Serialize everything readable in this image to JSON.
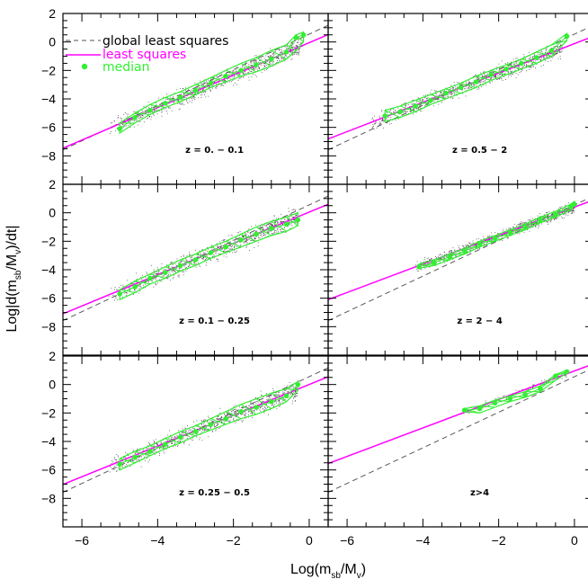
{
  "figure": {
    "xlabel": {
      "main": "Log(m",
      "sub1": "sb",
      "mid": "/M",
      "sub2": "v",
      "end": ")"
    },
    "ylabel": {
      "main": "Log|d(m",
      "sub1": "sb",
      "mid": "/M",
      "sub2": "v",
      "end": ")/dt|"
    }
  },
  "legend": {
    "global": "global least squares",
    "least": "least squares",
    "median": "median"
  },
  "colors": {
    "global_line": "#555555",
    "least_line": "#ff00ff",
    "median": "#33ee33",
    "scatter": "#222222"
  },
  "chart_data": {
    "type": "scatter",
    "layout": "3x2 panel grid",
    "xlim": [
      -6.5,
      0.5
    ],
    "ylim": [
      -10,
      2
    ],
    "xticks": [
      "−6",
      "−4",
      "−2",
      "0"
    ],
    "yticks": [
      "−8",
      "−6",
      "−4",
      "−2",
      "0",
      "2"
    ],
    "global_fit": {
      "slope": 1.25,
      "intercept": 0.55
    },
    "panels": [
      {
        "label": "z = 0. − 0.1",
        "fit": {
          "slope": 1.14,
          "intercept": -0.05
        },
        "median": [
          [
            -5.0,
            -6.1
          ],
          [
            -4.6,
            -5.3
          ],
          [
            -4.2,
            -4.8
          ],
          [
            -3.8,
            -4.3
          ],
          [
            -3.4,
            -3.9
          ],
          [
            -3.0,
            -3.4
          ],
          [
            -2.6,
            -2.9
          ],
          [
            -2.2,
            -2.4
          ],
          [
            -1.8,
            -2.0
          ],
          [
            -1.4,
            -1.6
          ],
          [
            -1.0,
            -1.2
          ],
          [
            -0.6,
            -0.7
          ],
          [
            -0.35,
            0.3
          ],
          [
            -0.15,
            0.5
          ]
        ],
        "band_low": [
          -6.4,
          -5.7,
          -5.1,
          -4.6,
          -4.2,
          -3.7,
          -3.2,
          -2.8,
          -2.4,
          -2.1,
          -1.7,
          -1.2,
          -0.6,
          0.0
        ],
        "band_high": [
          -5.7,
          -5.0,
          -4.4,
          -3.9,
          -3.5,
          -3.0,
          -2.5,
          -2.0,
          -1.5,
          -1.1,
          -0.6,
          -0.2,
          0.5,
          0.7
        ],
        "cloud": {
          "xmin": -5.3,
          "xmax": -0.2,
          "spread": 0.55
        }
      },
      {
        "label": "z = 0.5 − 2",
        "fit": {
          "slope": 1.03,
          "intercept": -0.12
        },
        "median": [
          [
            -5.0,
            -5.2
          ],
          [
            -4.6,
            -4.9
          ],
          [
            -4.2,
            -4.5
          ],
          [
            -3.8,
            -4.1
          ],
          [
            -3.4,
            -3.6
          ],
          [
            -3.0,
            -3.2
          ],
          [
            -2.6,
            -2.8
          ],
          [
            -2.2,
            -2.3
          ],
          [
            -1.8,
            -1.9
          ],
          [
            -1.4,
            -1.5
          ],
          [
            -1.0,
            -1.1
          ],
          [
            -0.6,
            -0.6
          ],
          [
            -0.2,
            0.4
          ]
        ],
        "band_low": [
          -5.6,
          -5.3,
          -4.9,
          -4.4,
          -4.0,
          -3.6,
          -3.2,
          -2.7,
          -2.3,
          -1.9,
          -1.5,
          -1.0,
          0.1
        ],
        "band_high": [
          -4.8,
          -4.5,
          -4.1,
          -3.7,
          -3.3,
          -2.9,
          -2.4,
          -2.0,
          -1.6,
          -1.2,
          -0.7,
          -0.2,
          0.6
        ],
        "cloud": {
          "xmin": -5.4,
          "xmax": -0.3,
          "spread": 0.5
        }
      },
      {
        "label": "z = 0.1 − 0.25",
        "fit": {
          "slope": 1.1,
          "intercept": 0.05
        },
        "median": [
          [
            -5.0,
            -5.7
          ],
          [
            -4.6,
            -5.2
          ],
          [
            -4.2,
            -4.6
          ],
          [
            -3.8,
            -4.2
          ],
          [
            -3.4,
            -3.7
          ],
          [
            -3.0,
            -3.3
          ],
          [
            -2.6,
            -2.8
          ],
          [
            -2.2,
            -2.4
          ],
          [
            -1.8,
            -1.9
          ],
          [
            -1.4,
            -1.5
          ],
          [
            -1.0,
            -1.1
          ],
          [
            -0.6,
            -0.8
          ],
          [
            -0.3,
            -0.5
          ]
        ],
        "band_low": [
          -6.1,
          -5.6,
          -5.0,
          -4.6,
          -4.1,
          -3.7,
          -3.2,
          -2.8,
          -2.4,
          -2.0,
          -1.6,
          -1.3,
          -0.9
        ],
        "band_high": [
          -5.4,
          -4.8,
          -4.3,
          -3.8,
          -3.3,
          -2.9,
          -2.4,
          -2.0,
          -1.5,
          -1.0,
          -0.6,
          -0.3,
          0.0
        ],
        "cloud": {
          "xmin": -5.3,
          "xmax": -0.3,
          "spread": 0.6
        }
      },
      {
        "label": "z = 2 − 4",
        "fit": {
          "slope": 1.0,
          "intercept": 0.4
        },
        "median": [
          [
            -4.1,
            -3.8
          ],
          [
            -3.7,
            -3.5
          ],
          [
            -3.3,
            -3.1
          ],
          [
            -2.9,
            -2.7
          ],
          [
            -2.5,
            -2.2
          ],
          [
            -2.1,
            -1.8
          ],
          [
            -1.7,
            -1.4
          ],
          [
            -1.3,
            -1.0
          ],
          [
            -0.9,
            -0.5
          ],
          [
            -0.5,
            -0.1
          ],
          [
            -0.1,
            0.4
          ],
          [
            0.0,
            0.6
          ]
        ],
        "band_low": [
          -3.9,
          -3.7,
          -3.3,
          -2.9,
          -2.4,
          -2.0,
          -1.6,
          -1.2,
          -0.7,
          -0.3,
          0.2,
          0.5
        ],
        "band_high": [
          -3.6,
          -3.3,
          -2.9,
          -2.5,
          -2.0,
          -1.6,
          -1.2,
          -0.8,
          -0.3,
          0.1,
          0.6,
          0.8
        ],
        "cloud": {
          "xmin": -4.2,
          "xmax": 0.0,
          "spread": 0.35
        }
      },
      {
        "label": "z = 0.25 − 0.5",
        "fit": {
          "slope": 1.08,
          "intercept": 0.0
        },
        "median": [
          [
            -5.0,
            -5.6
          ],
          [
            -4.6,
            -5.1
          ],
          [
            -4.2,
            -4.7
          ],
          [
            -3.8,
            -4.2
          ],
          [
            -3.4,
            -3.7
          ],
          [
            -3.0,
            -3.3
          ],
          [
            -2.6,
            -2.8
          ],
          [
            -2.2,
            -2.4
          ],
          [
            -1.8,
            -1.9
          ],
          [
            -1.4,
            -1.6
          ],
          [
            -1.0,
            -1.2
          ],
          [
            -0.6,
            -0.8
          ],
          [
            -0.3,
            0.0
          ]
        ],
        "band_low": [
          -6.0,
          -5.5,
          -5.0,
          -4.5,
          -4.1,
          -3.6,
          -3.2,
          -2.8,
          -2.4,
          -2.1,
          -1.7,
          -1.2,
          -0.4
        ],
        "band_high": [
          -5.2,
          -4.7,
          -4.3,
          -3.8,
          -3.3,
          -2.9,
          -2.4,
          -1.9,
          -1.4,
          -1.0,
          -0.6,
          -0.3,
          0.2
        ],
        "cloud": {
          "xmin": -5.3,
          "xmax": -0.3,
          "spread": 0.6
        }
      },
      {
        "label": "z>4",
        "fit": {
          "slope": 1.0,
          "intercept": 0.95
        },
        "median": [
          [
            -2.9,
            -1.8
          ],
          [
            -2.5,
            -1.7
          ],
          [
            -2.1,
            -1.3
          ],
          [
            -1.7,
            -1.0
          ],
          [
            -1.3,
            -0.7
          ],
          [
            -0.9,
            -0.3
          ],
          [
            -0.5,
            0.6
          ],
          [
            -0.2,
            0.9
          ]
        ],
        "band_low": [
          -1.9,
          -2.0,
          -1.6,
          -1.2,
          -0.9,
          -0.5,
          0.3,
          0.8
        ],
        "band_high": [
          -1.7,
          -1.5,
          -1.1,
          -0.8,
          -0.5,
          -0.1,
          0.7,
          1.0
        ],
        "cloud": {
          "xmin": -2.95,
          "xmax": -0.2,
          "spread": 0.2
        }
      }
    ]
  }
}
